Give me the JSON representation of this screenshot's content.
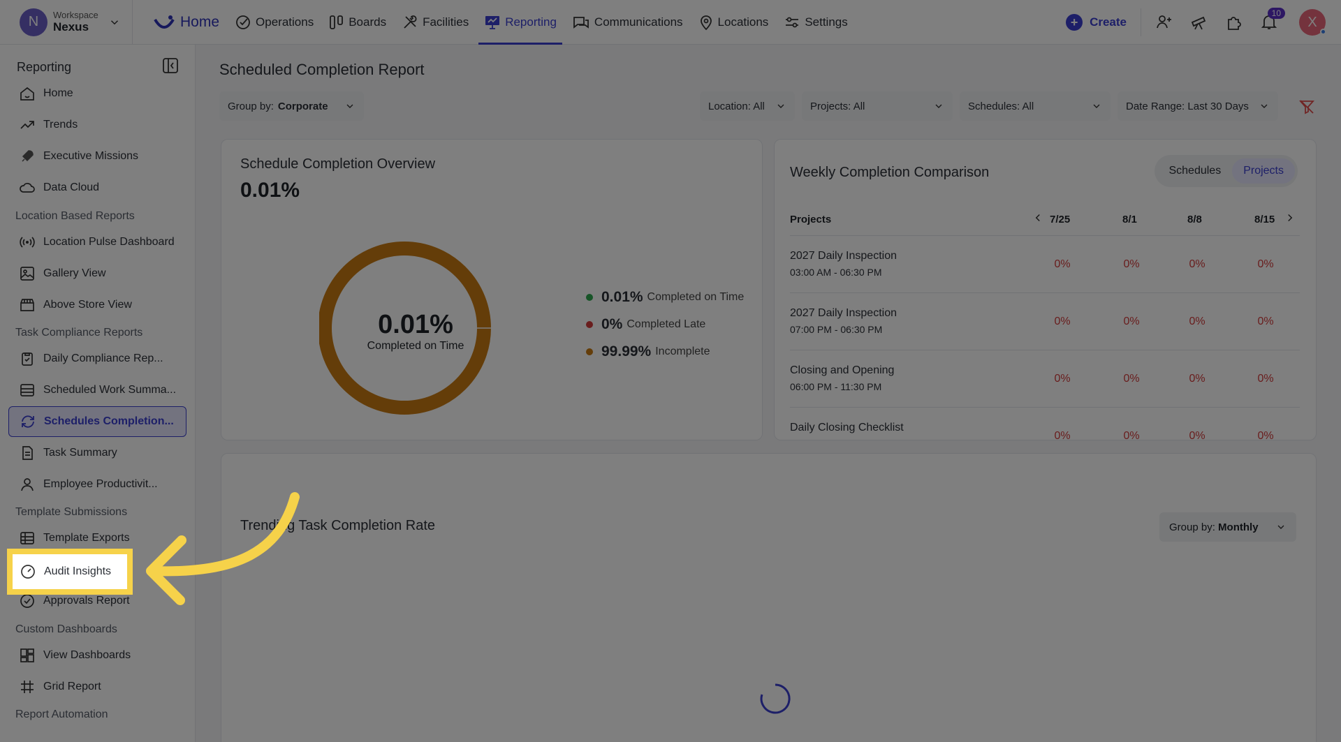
{
  "workspace": {
    "label": "Workspace",
    "name": "Nexus",
    "initial": "N"
  },
  "nav": {
    "home": "Home",
    "items": [
      "Operations",
      "Boards",
      "Facilities",
      "Reporting",
      "Communications",
      "Locations",
      "Settings"
    ],
    "active": "Reporting",
    "create": "Create",
    "notifications_count": "10",
    "user_initial": "X"
  },
  "sidebar": {
    "title": "Reporting",
    "items": {
      "home": "Home",
      "trends": "Trends",
      "executive_missions": "Executive Missions",
      "data_cloud": "Data Cloud",
      "location_pulse": "Location Pulse Dashboard",
      "gallery_view": "Gallery View",
      "above_store": "Above Store View",
      "daily_compliance": "Daily Compliance Rep...",
      "scheduled_work": "Scheduled Work Summa...",
      "schedules_completion": "Schedules Completion...",
      "task_summary": "Task Summary",
      "employee_productivity": "Employee Productivit...",
      "template_exports": "Template Exports",
      "audit_insights": "Audit Insights",
      "approvals_report": "Approvals Report",
      "view_dashboards": "View Dashboards",
      "grid_report": "Grid Report"
    },
    "sections": {
      "location_based": "Location Based Reports",
      "task_compliance": "Task Compliance Reports",
      "template_submissions": "Template Submissions",
      "custom_dashboards": "Custom Dashboards",
      "report_automation": "Report Automation"
    }
  },
  "page": {
    "title": "Scheduled Completion Report",
    "group_by_label": "Group by:",
    "group_by_value": "Corporate",
    "filters": {
      "location": "Location: All",
      "projects": "Projects: All",
      "schedules": "Schedules: All",
      "date_range": "Date Range: Last 30 Days"
    }
  },
  "overview": {
    "title": "Schedule Completion Overview",
    "value": "0.01%",
    "center_value": "0.01%",
    "center_label": "Completed on Time",
    "legend": [
      {
        "value": "0.01%",
        "label": "Completed on Time",
        "color": "#2fa84f"
      },
      {
        "value": "0%",
        "label": "Completed Late",
        "color": "#d23a3a"
      },
      {
        "value": "99.99%",
        "label": "Incomplete",
        "color": "#c97a12"
      }
    ],
    "donut_color": "#c97a12"
  },
  "weekly": {
    "title": "Weekly Completion Comparison",
    "toggle": {
      "schedules": "Schedules",
      "projects": "Projects"
    },
    "col_header": "Projects",
    "weeks": [
      "7/25",
      "8/1",
      "8/8",
      "8/15"
    ],
    "rows": [
      {
        "name": "2027 Daily Inspection",
        "time": "03:00 AM - 06:30 PM",
        "values": [
          "0%",
          "0%",
          "0%",
          "0%"
        ]
      },
      {
        "name": "2027 Daily Inspection",
        "time": "07:00 PM - 06:30 PM",
        "values": [
          "0%",
          "0%",
          "0%",
          "0%"
        ]
      },
      {
        "name": "Closing and Opening",
        "time": "06:00 PM - 11:30 PM",
        "values": [
          "0%",
          "0%",
          "0%",
          "0%"
        ]
      },
      {
        "name": "Daily Closing Checklist",
        "time": "",
        "values": [
          "0%",
          "0%",
          "0%",
          "0%"
        ]
      }
    ]
  },
  "trending": {
    "title": "Trending Task Completion Rate",
    "group_by_label": "Group by:",
    "group_by_value": "Monthly"
  }
}
